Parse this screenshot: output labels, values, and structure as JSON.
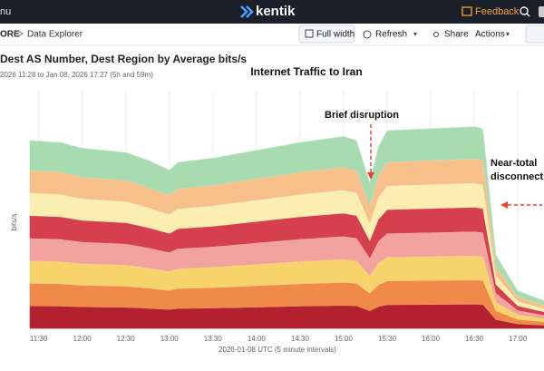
{
  "header": {
    "menu": "nu",
    "logo": "kentik",
    "feedback": "Feedback"
  },
  "breadcrumb": {
    "section": "ORE",
    "page": "Data Explorer"
  },
  "toolbar": {
    "full_width": "Full width",
    "refresh": "Refresh",
    "share": "Share",
    "actions": "Actions"
  },
  "query": {
    "title": "Dest AS Number, Dest Region by Average bits/s",
    "range": "2026 11:28 to Jan 08, 2026 17:27 (5h and 59m)"
  },
  "chart_data": {
    "type": "area",
    "stacked": true,
    "title": "Internet Traffic to Iran",
    "y_label": "bits/s",
    "x_label": "2026-01-08 UTC (5 minute intervals)",
    "annotations": [
      "Brief disruption",
      "Near-total",
      "disconnecti"
    ],
    "x": [
      11.4,
      11.75,
      12.0,
      12.25,
      12.5,
      12.75,
      13.0,
      13.1,
      13.5,
      14.0,
      14.5,
      15.0,
      15.15,
      15.3,
      15.4,
      15.5,
      16.0,
      16.5,
      16.6,
      16.75,
      17.0,
      17.3
    ],
    "xlim": [
      11.4,
      17.3
    ],
    "xticks": [
      {
        "value": 11.5,
        "label": "11:30"
      },
      {
        "value": 12,
        "label": "12:00"
      },
      {
        "value": 12.5,
        "label": "12:30"
      },
      {
        "value": 13,
        "label": "13:00"
      },
      {
        "value": 13.5,
        "label": "13:30"
      },
      {
        "value": 14,
        "label": "14:00"
      },
      {
        "value": 14.5,
        "label": "14:30"
      },
      {
        "value": 15,
        "label": "15:00"
      },
      {
        "value": 15.5,
        "label": "15:30"
      },
      {
        "value": 16,
        "label": "16:00"
      },
      {
        "value": 16.5,
        "label": "16:30"
      },
      {
        "value": 17,
        "label": "17:00"
      }
    ],
    "ylim": [
      0,
      100
    ],
    "grid": true,
    "series": [
      {
        "color": "#b3202e",
        "values": [
          9.5,
          9.4,
          9.1,
          9.0,
          8.9,
          8.5,
          8.0,
          8.4,
          8.6,
          9.0,
          9.4,
          9.7,
          9.5,
          7.4,
          9.2,
          10.0,
          10.1,
          10.2,
          10.1,
          3.7,
          1.9,
          1.4
        ]
      },
      {
        "color": "#f08a4b",
        "values": [
          9.5,
          9.4,
          9.1,
          9.0,
          8.9,
          8.5,
          8.0,
          8.4,
          8.6,
          9.0,
          9.4,
          9.7,
          9.5,
          7.4,
          9.2,
          10.0,
          10.1,
          10.2,
          10.1,
          3.7,
          1.9,
          1.4
        ]
      },
      {
        "color": "#f6d36b",
        "values": [
          9.5,
          9.4,
          9.1,
          9.0,
          8.9,
          8.5,
          8.0,
          8.4,
          8.6,
          9.0,
          9.4,
          9.7,
          9.5,
          7.4,
          9.2,
          10.0,
          10.1,
          10.2,
          10.1,
          3.7,
          1.9,
          1.4
        ]
      },
      {
        "color": "#f2a3a0",
        "values": [
          9.5,
          9.4,
          9.1,
          9.0,
          8.9,
          8.5,
          8.0,
          8.4,
          8.6,
          9.0,
          9.4,
          9.7,
          9.5,
          7.4,
          9.2,
          10.0,
          10.1,
          10.2,
          10.1,
          3.7,
          1.9,
          1.4
        ]
      },
      {
        "color": "#d6404e",
        "values": [
          9.5,
          9.4,
          9.1,
          9.0,
          8.9,
          8.5,
          8.0,
          8.4,
          8.6,
          9.0,
          9.4,
          9.7,
          9.5,
          7.4,
          9.2,
          10.0,
          10.1,
          10.2,
          10.1,
          3.7,
          1.9,
          1.4
        ]
      },
      {
        "color": "#fbeeb0",
        "values": [
          9.5,
          9.4,
          9.1,
          9.0,
          8.9,
          8.5,
          8.0,
          8.4,
          8.6,
          9.0,
          9.4,
          9.7,
          9.5,
          7.4,
          9.2,
          10.0,
          10.1,
          10.2,
          10.1,
          3.7,
          1.9,
          1.4
        ]
      },
      {
        "color": "#f7c08a",
        "values": [
          9.5,
          9.4,
          9.1,
          9.0,
          8.9,
          8.5,
          8.0,
          8.4,
          8.6,
          9.0,
          9.4,
          9.7,
          9.5,
          7.4,
          9.2,
          10.0,
          10.1,
          10.2,
          10.1,
          3.7,
          1.9,
          1.4
        ]
      },
      {
        "color": "#a8dcb0",
        "values": [
          12.6,
          12.5,
          12.2,
          12.0,
          11.8,
          11.4,
          10.7,
          11.2,
          11.5,
          12.0,
          12.5,
          13.0,
          12.6,
          9.9,
          12.3,
          13.3,
          13.4,
          13.6,
          13.4,
          5.0,
          2.6,
          1.9
        ]
      }
    ]
  }
}
